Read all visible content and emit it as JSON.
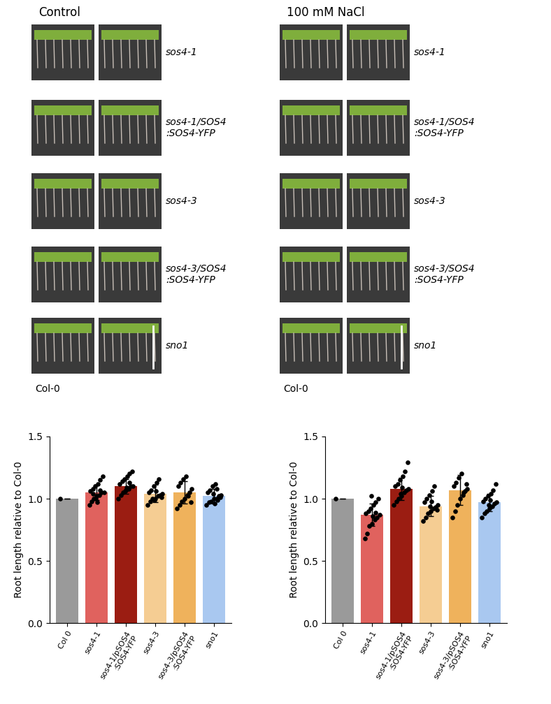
{
  "photos": [
    {
      "title": "Control",
      "rows": [
        "sos4-1",
        "sos4-1/SOS4\n:SOS4-YFP",
        "sos4-3",
        "sos4-3/SOS4\n:SOS4-YFP",
        "sno1"
      ],
      "reference": "Col-0"
    },
    {
      "title": "100 mM NaCl",
      "rows": [
        "sos4-1",
        "sos4-1/SOS4\n:SOS4-YFP",
        "sos4-3",
        "sos4-3/SOS4\n:SOS4-YFP",
        "sno1"
      ],
      "reference": "Col-0"
    }
  ],
  "chart_data": [
    {
      "type": "bar",
      "y_label": "Root length relative to Col-0",
      "categories": [
        "Col 0",
        "sos4-1",
        "sos4-1/pSOS4\n:SOS4-YFP",
        "sos4-3",
        "sos4-3/pSOS4\n:SOS4-YFP",
        "sno1"
      ],
      "values": [
        1.0,
        1.05,
        1.1,
        1.04,
        1.05,
        1.02
      ],
      "errors": [
        0.0,
        0.06,
        0.06,
        0.07,
        0.09,
        0.06
      ],
      "points": [
        [
          1.0
        ],
        [
          0.95,
          0.98,
          1.0,
          1.02,
          1.03,
          1.05,
          1.05,
          1.06,
          1.08,
          1.1,
          1.12,
          1.15,
          1.18,
          1.0,
          0.97,
          1.07,
          1.04
        ],
        [
          1.0,
          1.03,
          1.05,
          1.07,
          1.08,
          1.1,
          1.1,
          1.12,
          1.14,
          1.16,
          1.18,
          1.2,
          1.22,
          1.06,
          1.09,
          1.13
        ],
        [
          0.95,
          0.98,
          1.0,
          1.0,
          1.02,
          1.03,
          1.04,
          1.05,
          1.07,
          1.1,
          1.13,
          1.16,
          1.01,
          0.99,
          1.06
        ],
        [
          0.92,
          0.95,
          0.98,
          1.0,
          1.03,
          1.05,
          1.08,
          1.1,
          1.13,
          1.16,
          1.18,
          1.02,
          0.97
        ],
        [
          0.95,
          0.97,
          0.98,
          1.0,
          1.0,
          1.02,
          1.03,
          1.05,
          1.07,
          1.1,
          1.12,
          0.99,
          1.01,
          1.04,
          0.96,
          1.08
        ]
      ],
      "colors": [
        "#9a9a9a",
        "#e0625e",
        "#9b1d12",
        "#f5cd93",
        "#efb25c",
        "#a9c8f0"
      ],
      "ylim": [
        0,
        1.5
      ],
      "yticks": [
        {
          "value": 0,
          "label": "0.0"
        },
        {
          "value": 0.5,
          "label": "0.5"
        },
        {
          "value": 1.0,
          "label": "1.0"
        },
        {
          "value": 1.5,
          "label": "1.5"
        }
      ]
    },
    {
      "type": "bar",
      "y_label": "Root length relative to Col-0",
      "categories": [
        "Col 0",
        "sos4-1",
        "sos4-1/pSOS4\n:SOS4-YFP",
        "sos4-3",
        "sos4-3/pSOS4\n:SOS4-YFP",
        "sno1"
      ],
      "values": [
        1.0,
        0.87,
        1.08,
        0.94,
        1.07,
        0.97
      ],
      "errors": [
        0.0,
        0.09,
        0.09,
        0.08,
        0.12,
        0.07
      ],
      "points": [
        [
          1.0
        ],
        [
          0.68,
          0.72,
          0.78,
          0.8,
          0.83,
          0.85,
          0.87,
          0.88,
          0.9,
          0.92,
          0.95,
          0.97,
          1.0,
          1.02,
          0.86,
          0.89
        ],
        [
          0.95,
          0.98,
          1.0,
          1.02,
          1.05,
          1.07,
          1.08,
          1.1,
          1.12,
          1.15,
          1.18,
          1.22,
          1.29,
          1.04,
          1.09
        ],
        [
          0.82,
          0.85,
          0.88,
          0.9,
          0.92,
          0.93,
          0.95,
          0.97,
          1.0,
          1.03,
          1.06,
          1.1,
          0.91,
          0.94,
          0.98
        ],
        [
          0.85,
          0.9,
          0.95,
          1.0,
          1.03,
          1.06,
          1.08,
          1.1,
          1.13,
          1.17,
          1.2,
          1.05,
          1.12
        ],
        [
          0.85,
          0.88,
          0.9,
          0.92,
          0.94,
          0.96,
          0.97,
          0.98,
          1.0,
          1.02,
          1.04,
          1.07,
          1.12,
          0.95,
          0.99
        ]
      ],
      "colors": [
        "#9a9a9a",
        "#e0625e",
        "#9b1d12",
        "#f5cd93",
        "#efb25c",
        "#a9c8f0"
      ],
      "ylim": [
        0,
        1.5
      ],
      "yticks": [
        {
          "value": 0,
          "label": "0.0"
        },
        {
          "value": 0.5,
          "label": "0.5"
        },
        {
          "value": 1.0,
          "label": "1.0"
        },
        {
          "value": 1.5,
          "label": "1.5"
        }
      ]
    }
  ]
}
